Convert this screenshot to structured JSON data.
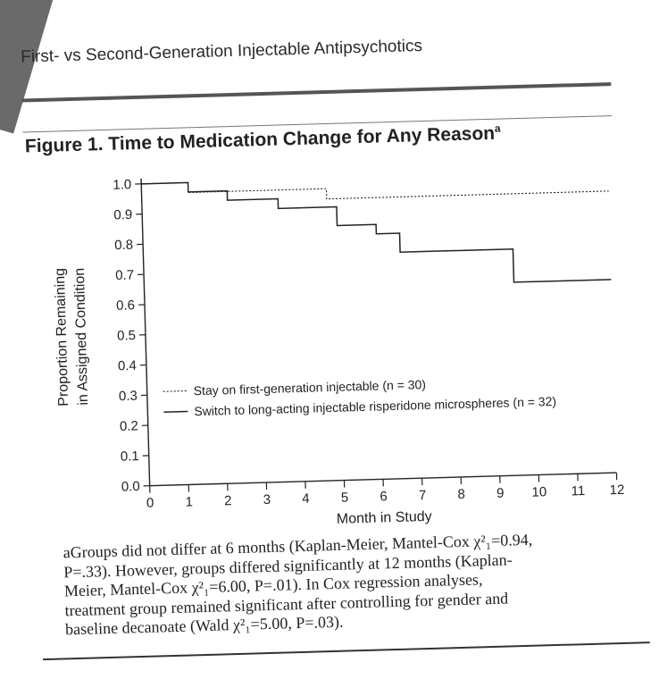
{
  "header": {
    "running_title": "First- vs Second-Generation Injectable Antipsychotics"
  },
  "figure": {
    "title": "Figure 1. Time to Medication Change for Any Reason",
    "title_superscript": "a"
  },
  "chart_data": {
    "type": "line",
    "title": "Figure 1. Time to Medication Change for Any Reason",
    "xlabel": "Month in Study",
    "ylabel_lines": [
      "Proportion Remaining",
      "in Assigned Condition"
    ],
    "xlim": [
      0,
      12
    ],
    "ylim": [
      0,
      1.0
    ],
    "x_ticks": [
      0,
      1,
      2,
      3,
      4,
      5,
      6,
      7,
      8,
      9,
      10,
      11,
      12
    ],
    "y_ticks": [
      "0.0",
      "0.1",
      "0.2",
      "0.3",
      "0.4",
      "0.5",
      "0.6",
      "0.7",
      "0.8",
      "0.9",
      "1.0"
    ],
    "legend_position": "center",
    "grid": false,
    "series": [
      {
        "name": "Stay on first-generation injectable (n = 30)",
        "style": "dashed",
        "step_x": [
          0,
          1,
          1.2,
          2.3,
          4.5,
          4.75,
          12
        ],
        "step_y": [
          1.0,
          1.0,
          0.967,
          0.967,
          0.967,
          0.933,
          0.933
        ]
      },
      {
        "name": "Switch to long-acting injectable risperidone microspheres (n = 32)",
        "style": "solid",
        "step_x": [
          0,
          1,
          1.2,
          2.2,
          3.5,
          5,
          6,
          6.6,
          9,
          9.5,
          12
        ],
        "step_y": [
          1.0,
          1.0,
          0.969,
          0.938,
          0.906,
          0.844,
          0.813,
          0.75,
          0.75,
          0.64,
          0.64
        ]
      }
    ]
  },
  "footnote": {
    "lines": [
      "aGroups did not differ at 6 months (Kaplan-Meier, Mantel-Cox χ²₁=0.94,",
      "P=.33). However, groups differed significantly at 12 months (Kaplan-",
      "Meier, Mantel-Cox χ²₁=6.00, P=.01). In Cox regression analyses,",
      "treatment group remained significant after controlling for gender and",
      "baseline decanoate (Wald χ²₁=5.00, P=.03)."
    ]
  }
}
